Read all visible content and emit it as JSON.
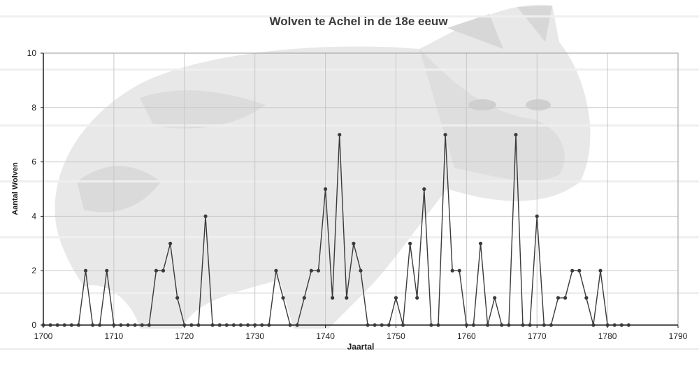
{
  "chart_data": {
    "type": "line",
    "title": "Wolven te Achel in de 18e eeuw",
    "xlabel": "Jaartal",
    "ylabel": "Aantal Wolven",
    "xlim": [
      1700,
      1790
    ],
    "ylim": [
      0,
      10
    ],
    "x_ticks": [
      1700,
      1710,
      1720,
      1730,
      1740,
      1750,
      1760,
      1770,
      1780,
      1790
    ],
    "y_ticks": [
      0,
      2,
      4,
      6,
      8,
      10
    ],
    "grid": true,
    "legend": "none",
    "series": [
      {
        "x": [
          1700,
          1701,
          1702,
          1703,
          1704,
          1705,
          1706,
          1707,
          1708,
          1709,
          1710,
          1711,
          1712,
          1713,
          1714,
          1715,
          1716,
          1717,
          1718,
          1719,
          1720,
          1721,
          1722,
          1723,
          1724,
          1725,
          1726,
          1727,
          1728,
          1729,
          1730,
          1731,
          1732,
          1733,
          1734,
          1735,
          1736,
          1737,
          1738,
          1739,
          1740,
          1741,
          1742,
          1743,
          1744,
          1745,
          1746,
          1747,
          1748,
          1749,
          1750,
          1751,
          1752,
          1753,
          1754,
          1755,
          1756,
          1757,
          1758,
          1759,
          1760,
          1761,
          1762,
          1763,
          1764,
          1765,
          1766,
          1767,
          1768,
          1769,
          1770,
          1771,
          1772,
          1773,
          1774,
          1775,
          1776,
          1777,
          1778,
          1779,
          1780,
          1781,
          1782,
          1783
        ],
        "y": [
          0,
          0,
          0,
          0,
          0,
          0,
          2,
          0,
          0,
          2,
          0,
          0,
          0,
          0,
          0,
          0,
          2,
          2,
          3,
          1,
          0,
          0,
          0,
          4,
          0,
          0,
          0,
          0,
          0,
          0,
          0,
          0,
          0,
          2,
          1,
          0,
          0,
          1,
          2,
          2,
          5,
          1,
          7,
          1,
          3,
          2,
          0,
          0,
          0,
          0,
          1,
          0,
          3,
          1,
          5,
          0,
          0,
          7,
          2,
          2,
          0,
          0,
          3,
          0,
          1,
          0,
          0,
          7,
          0,
          0,
          4,
          0,
          0,
          1,
          1,
          2,
          2,
          1,
          0,
          2,
          0,
          0,
          0,
          0
        ]
      }
    ]
  },
  "colors": {
    "line": "#3a3a3a",
    "marker": "#3a3a3a",
    "grid": "#c8c8c8",
    "axis": "#1e1e1e",
    "title": "#3c3c3c"
  }
}
